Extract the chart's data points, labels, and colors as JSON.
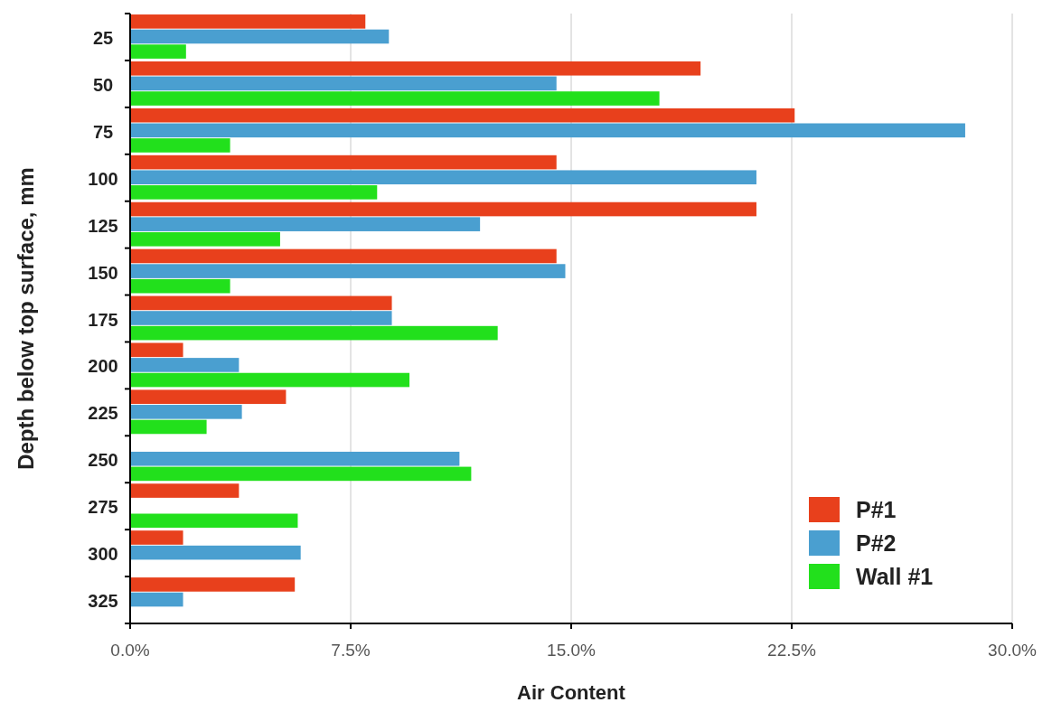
{
  "chart_data": {
    "type": "bar",
    "orientation": "horizontal",
    "xlabel": "Air Content",
    "ylabel": "Depth below top surface, mm",
    "categories": [
      "25",
      "50",
      "75",
      "100",
      "125",
      "150",
      "175",
      "200",
      "225",
      "250",
      "275",
      "300",
      "325"
    ],
    "series": [
      {
        "name": "P#1",
        "color": "#e8401c",
        "values": [
          8.0,
          19.4,
          22.6,
          14.5,
          21.3,
          14.5,
          8.9,
          1.8,
          5.3,
          null,
          3.7,
          1.8,
          5.6
        ]
      },
      {
        "name": "P#2",
        "color": "#4a9fd0",
        "values": [
          8.8,
          14.5,
          28.4,
          21.3,
          11.9,
          14.8,
          8.9,
          3.7,
          3.8,
          11.2,
          null,
          5.8,
          1.8
        ]
      },
      {
        "name": "Wall #1",
        "color": "#22e01c",
        "values": [
          1.9,
          18.0,
          3.4,
          8.4,
          5.1,
          3.4,
          12.5,
          9.5,
          2.6,
          11.6,
          5.7,
          null,
          null
        ]
      }
    ],
    "xlim": [
      0,
      30
    ],
    "xticks": [
      {
        "value": 0,
        "label": "0.0%"
      },
      {
        "value": 7.5,
        "label": "7.5%"
      },
      {
        "value": 15,
        "label": "15.0%"
      },
      {
        "value": 22.5,
        "label": "22.5%"
      },
      {
        "value": 30,
        "label": "30.0%"
      }
    ],
    "grid": "x",
    "legend": "bottom right"
  }
}
